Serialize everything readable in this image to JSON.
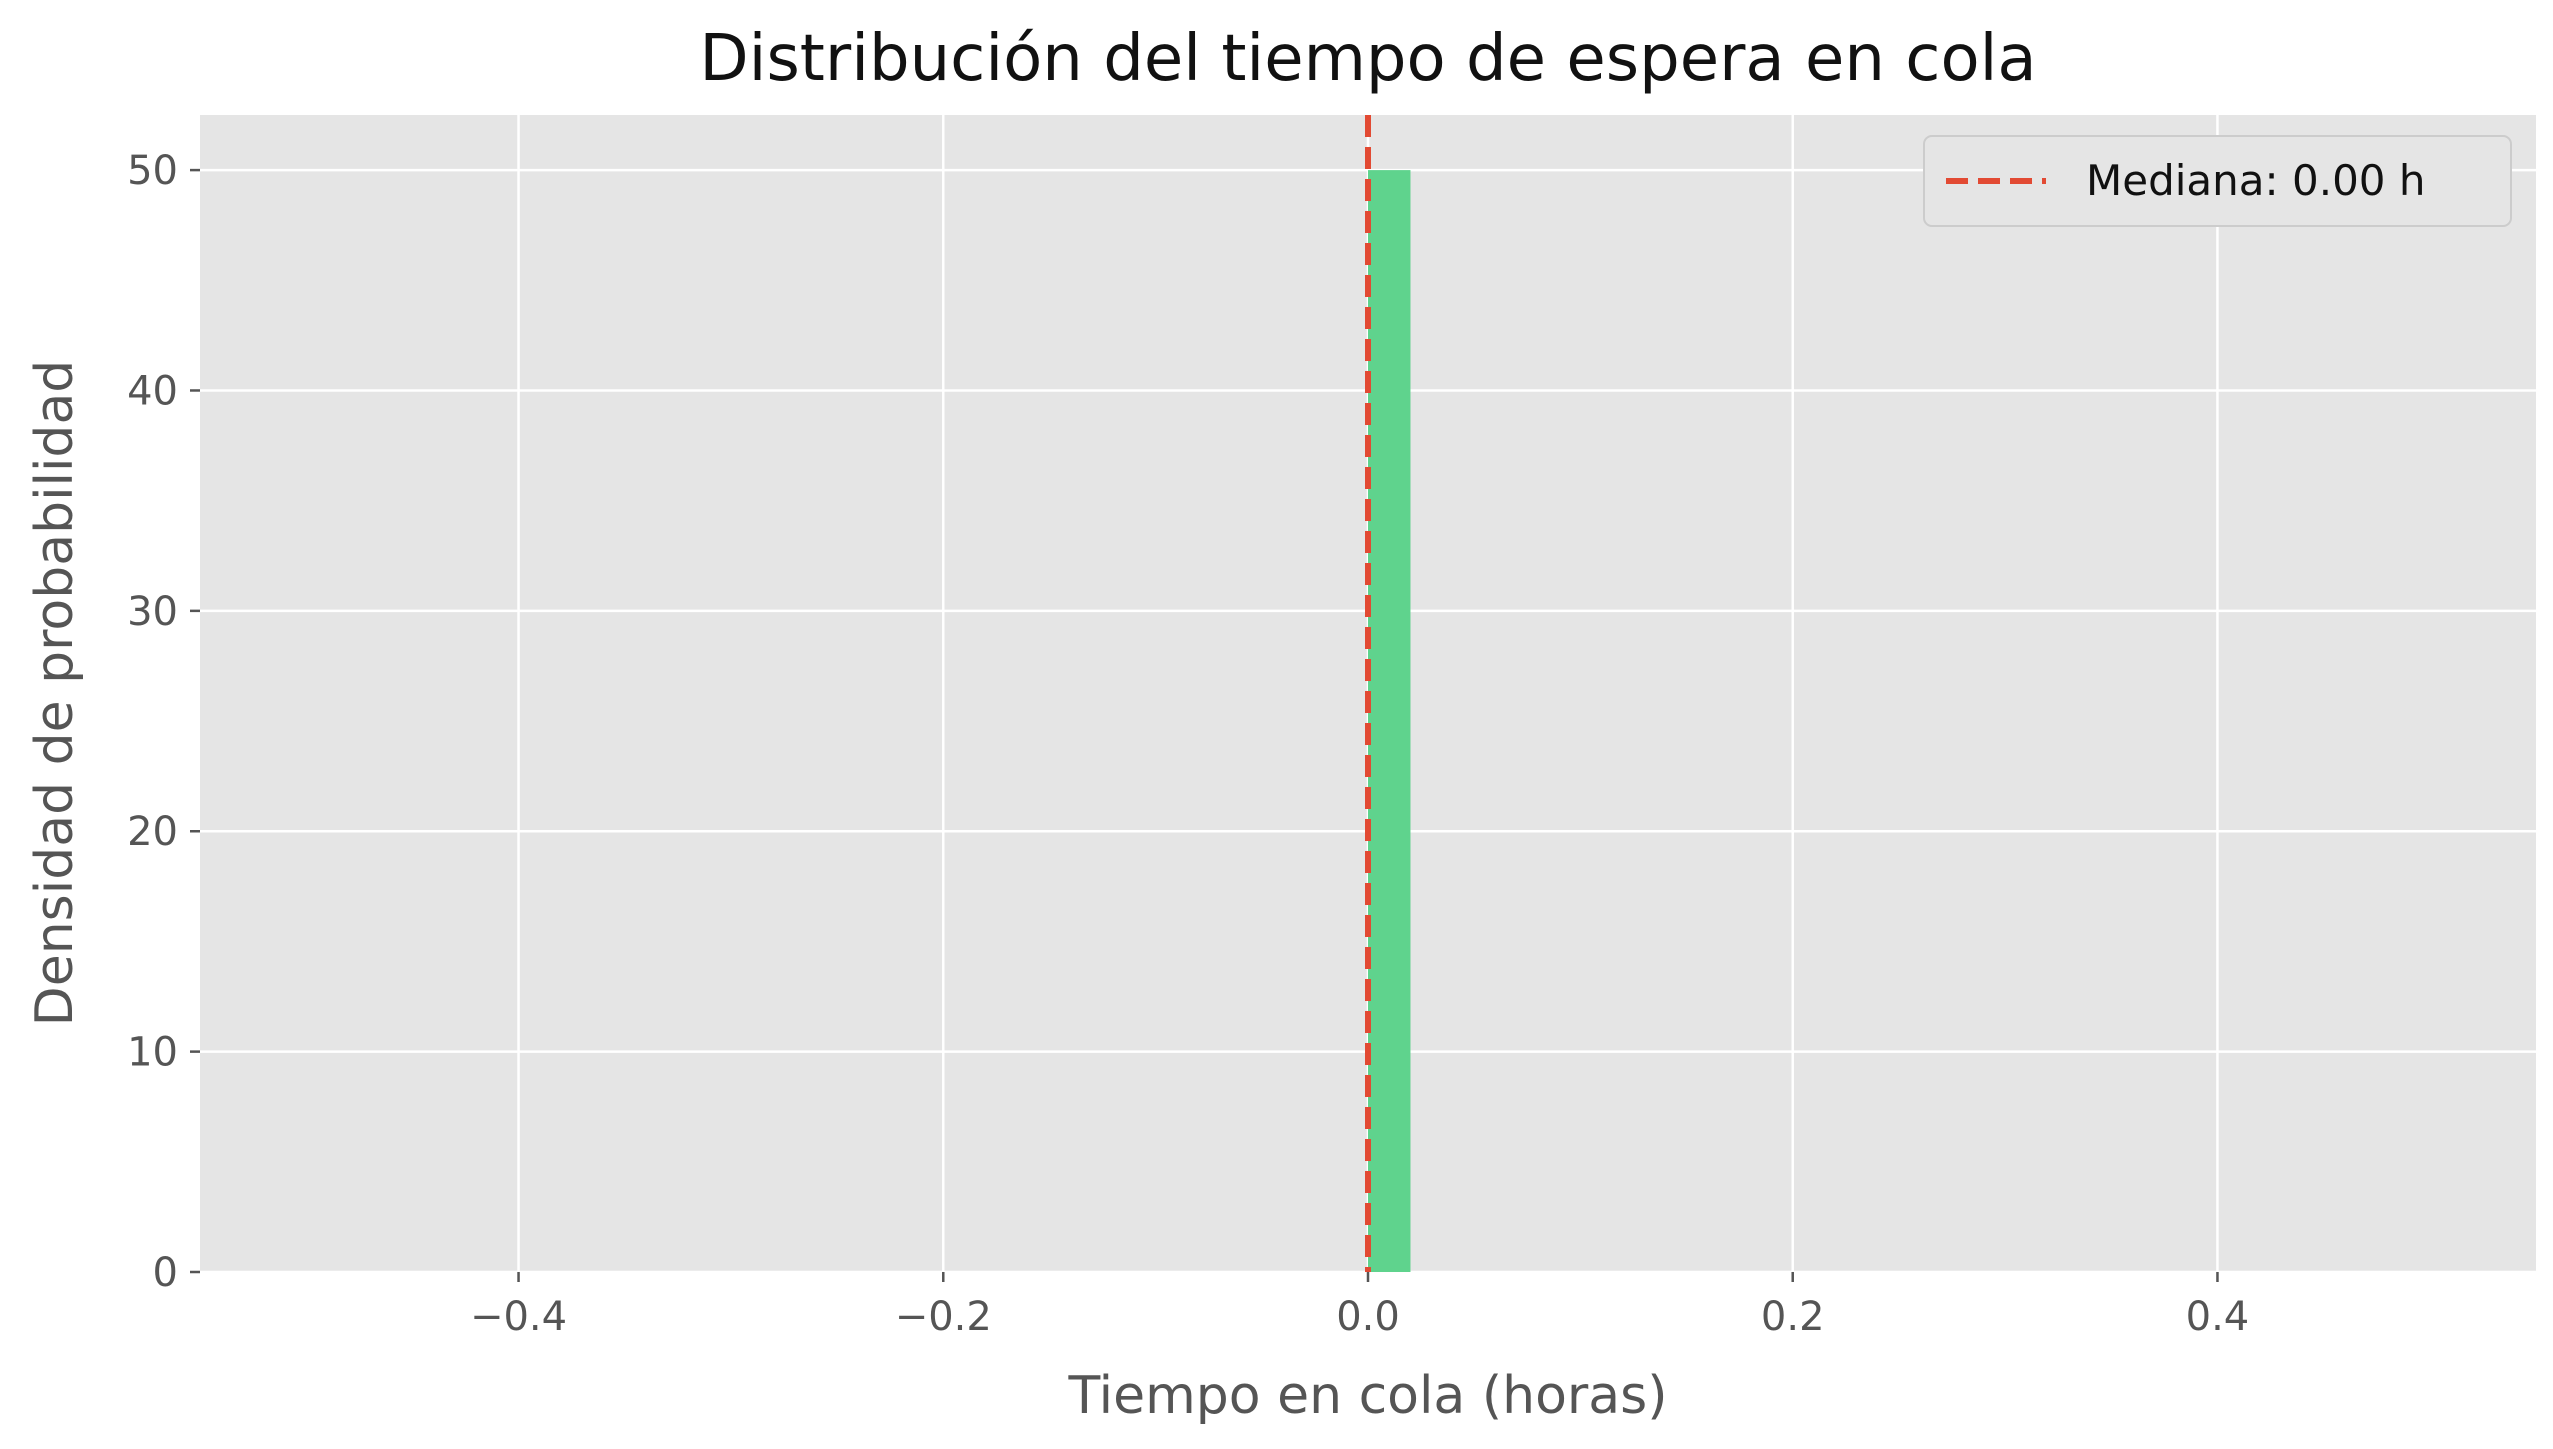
{
  "chart_data": {
    "type": "bar",
    "title": "Distribución del tiempo de espera en cola",
    "xlabel": "Tiempo en cola (horas)",
    "ylabel": "Densidad de probabilidad",
    "xlim": [
      -0.55,
      0.55
    ],
    "ylim": [
      0,
      52.5
    ],
    "x_ticks": [
      -0.4,
      -0.2,
      0.0,
      0.2,
      0.4
    ],
    "x_tick_labels": [
      "−0.4",
      "−0.2",
      "0.0",
      "0.2",
      "0.4"
    ],
    "y_ticks": [
      0,
      10,
      20,
      30,
      40,
      50
    ],
    "y_tick_labels": [
      "0",
      "10",
      "20",
      "30",
      "40",
      "50"
    ],
    "bins": [
      {
        "x_start": 0.0,
        "x_end": 0.02,
        "value": 50
      }
    ],
    "bar_color": "#5fd38d",
    "median": {
      "value": 0.0,
      "label": "Mediana: 0.00 h",
      "color": "#e24a33"
    },
    "grid": true,
    "background_color": "#e5e5e5",
    "grid_color": "#ffffff",
    "legend_position": "top-right"
  }
}
